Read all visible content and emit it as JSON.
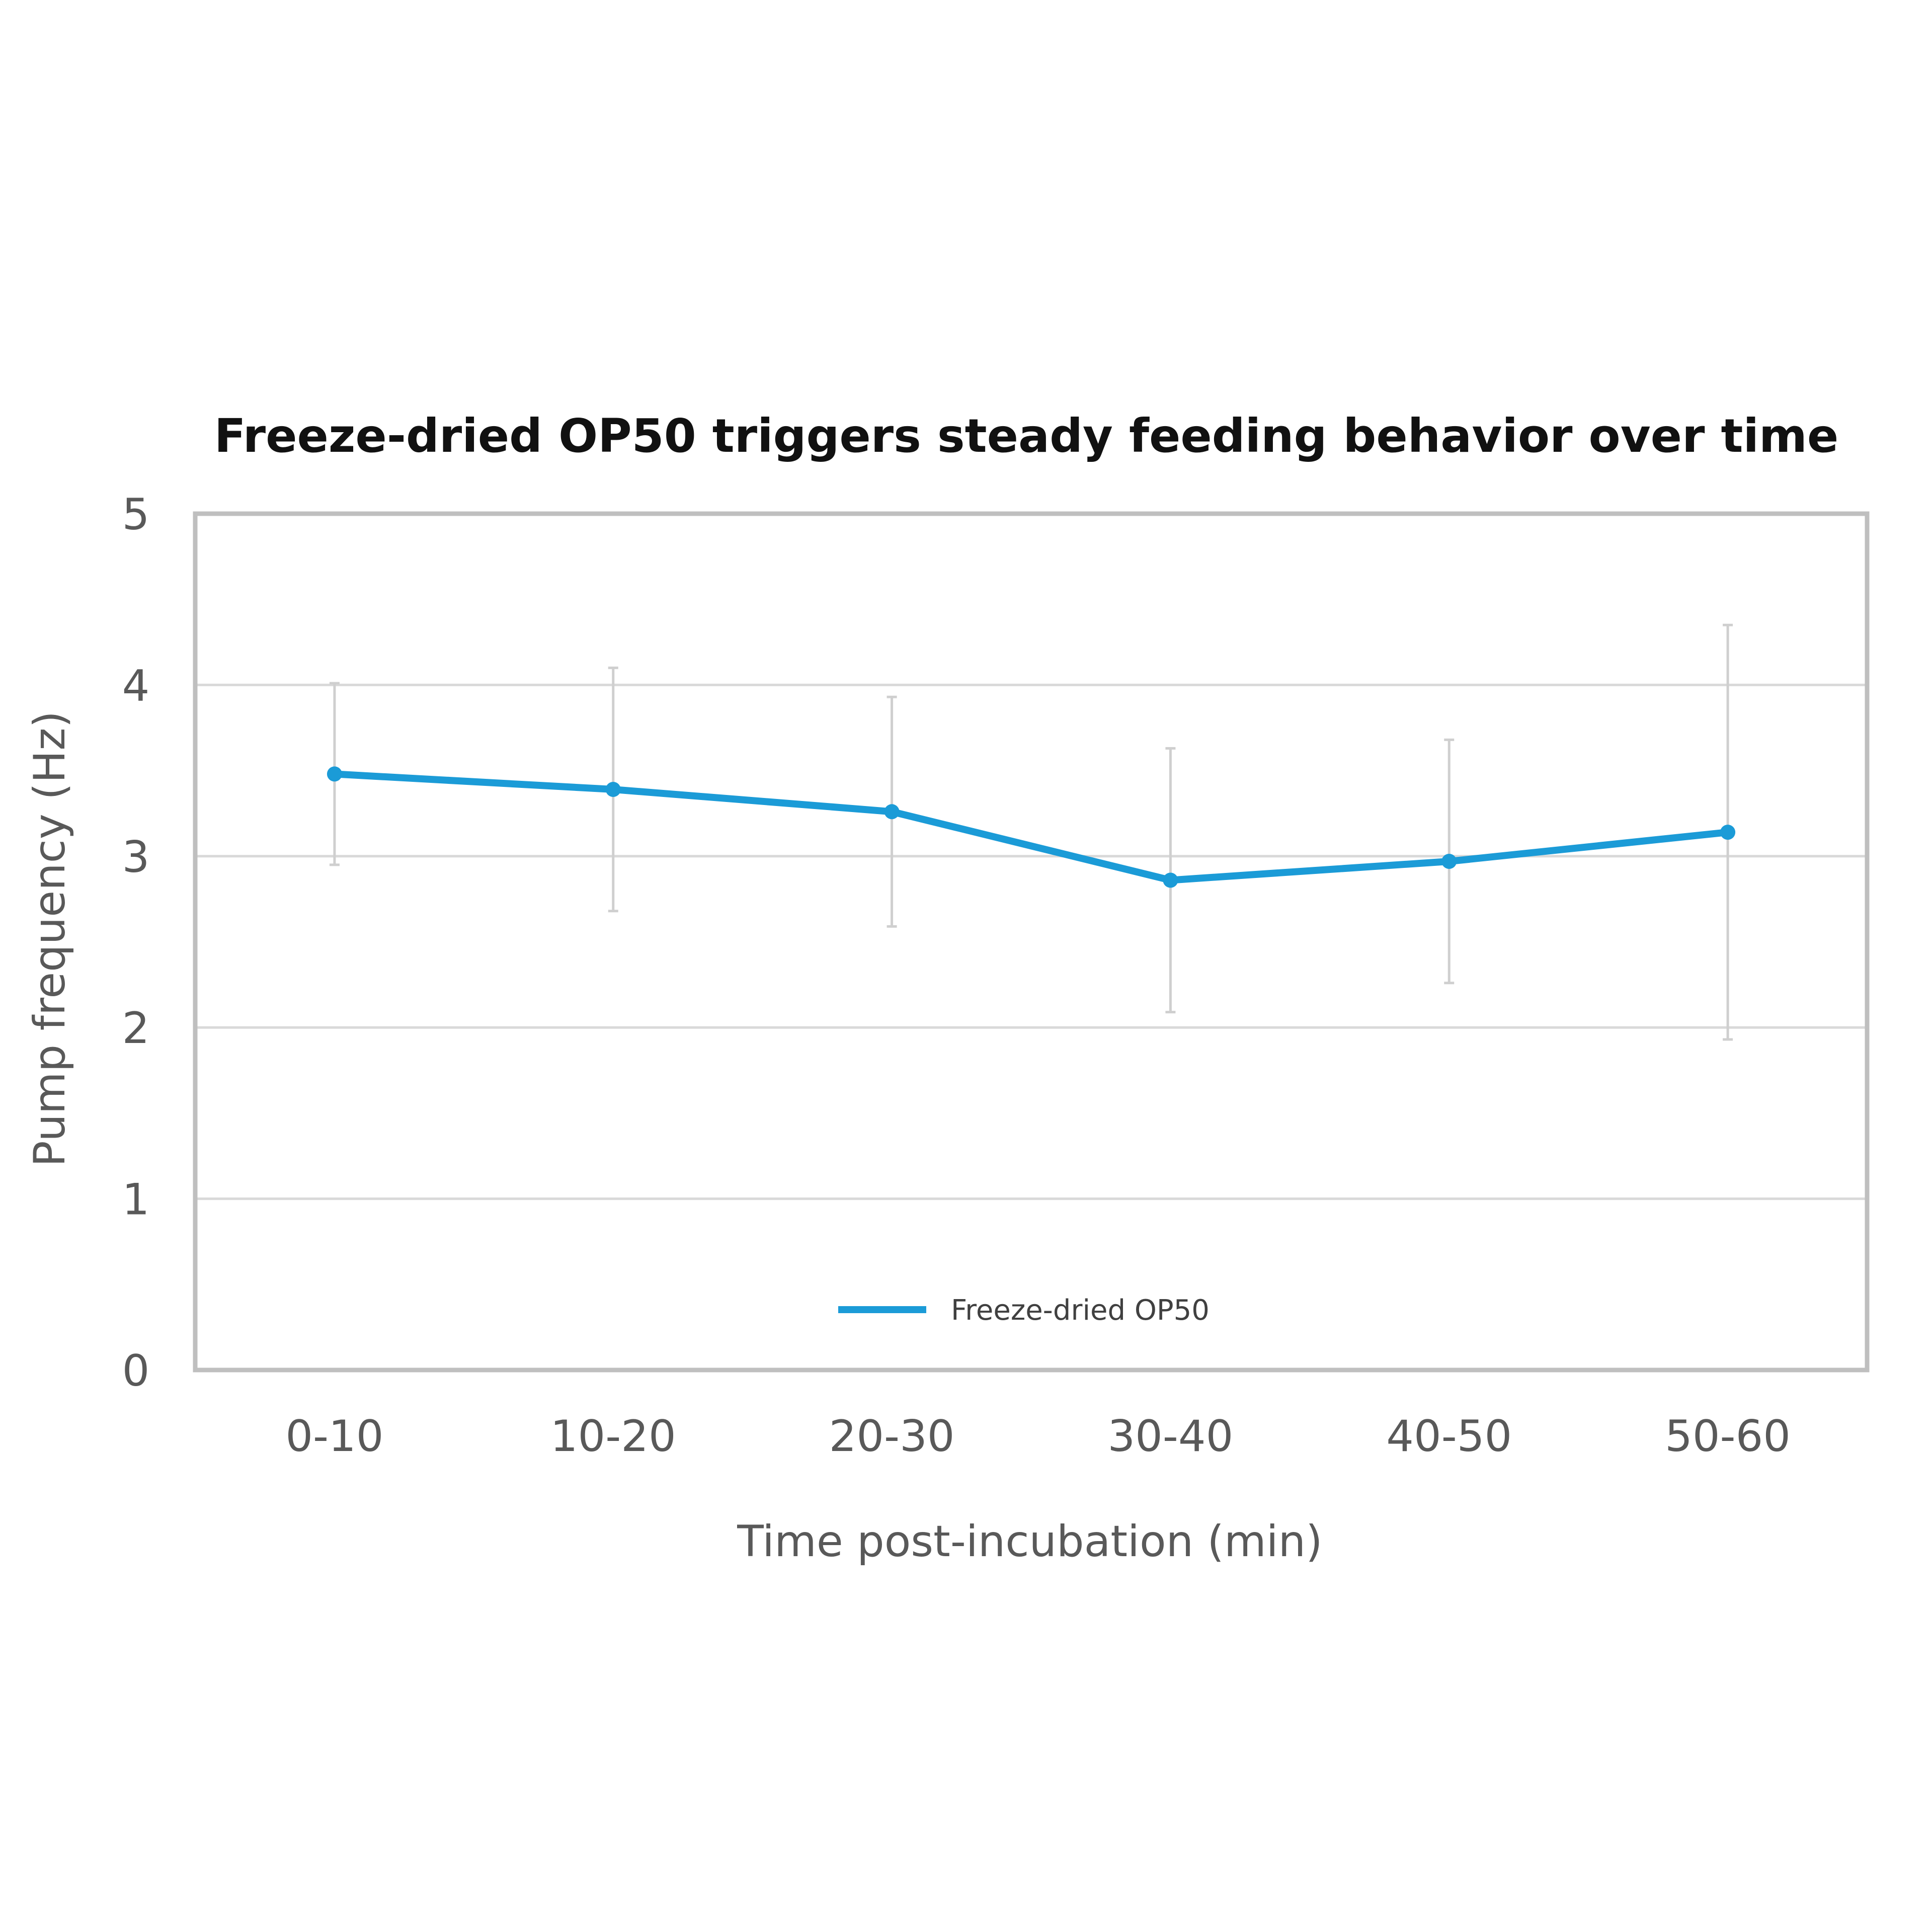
{
  "chart_data": {
    "type": "line",
    "title": "Freeze-dried OP50 triggers steady feeding behavior over time",
    "xlabel": "Time post-incubation (min)",
    "ylabel": "Pump frequency (Hz)",
    "categories": [
      "0-10",
      "10-20",
      "20-30",
      "30-40",
      "40-50",
      "50-60"
    ],
    "series": [
      {
        "name": "Freeze-dried OP50",
        "color": "#1b9bd7",
        "values": [
          3.48,
          3.39,
          3.26,
          2.86,
          2.97,
          3.14
        ],
        "error": [
          0.53,
          0.71,
          0.67,
          0.77,
          0.71,
          1.21
        ]
      }
    ],
    "ylim": [
      0,
      5
    ],
    "yticks": [
      "0",
      "1",
      "2",
      "3",
      "4",
      "5"
    ],
    "grid": true,
    "legend_position": "inside-bottom-center"
  },
  "colors": {
    "line": "#1b9bd7",
    "grid": "#d9d9d9",
    "frame": "#bfbfbf",
    "error_bar": "#cfcfcf",
    "text": "#595959",
    "title": "#111111"
  }
}
